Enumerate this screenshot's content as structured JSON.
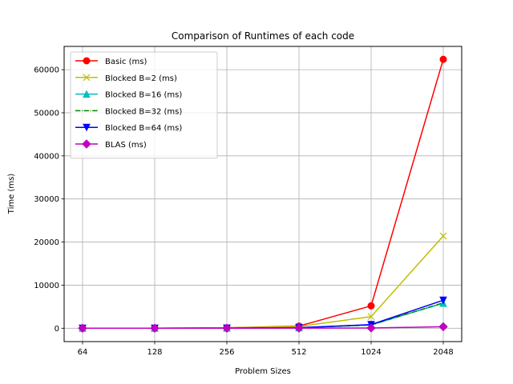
{
  "chart_data": {
    "type": "line",
    "title": "Comparison of Runtimes of each code",
    "xlabel": "Problem Sizes",
    "ylabel": "Time (ms)",
    "categories": [
      "64",
      "128",
      "256",
      "512",
      "1024",
      "2048"
    ],
    "ylim": [
      -3100,
      65400
    ],
    "yticks": [
      0,
      10000,
      20000,
      30000,
      40000,
      50000,
      60000
    ],
    "grid": true,
    "legend_position": "upper-left",
    "series": [
      {
        "name": "Basic (ms)",
        "color": "#ff0000",
        "marker": "circle",
        "dash": "solid",
        "values": [
          5,
          20,
          110,
          500,
          5200,
          62400
        ]
      },
      {
        "name": "Blocked B=2 (ms)",
        "color": "#bfbf00",
        "marker": "x",
        "dash": "solid",
        "values": [
          5,
          20,
          100,
          400,
          2700,
          21400
        ]
      },
      {
        "name": "Blocked B=16 (ms)",
        "color": "#00bfbf",
        "marker": "triangle-up",
        "dash": "solid",
        "values": [
          2,
          8,
          30,
          120,
          800,
          5800
        ]
      },
      {
        "name": "Blocked B=32 (ms)",
        "color": "#008000",
        "marker": "none",
        "dash": "dashdot",
        "values": [
          2,
          8,
          30,
          110,
          750,
          5900
        ]
      },
      {
        "name": "Blocked B=64 (ms)",
        "color": "#0000ff",
        "marker": "triangle-down",
        "dash": "solid",
        "values": [
          2,
          8,
          30,
          120,
          850,
          6500
        ]
      },
      {
        "name": "BLAS (ms)",
        "color": "#bf00bf",
        "marker": "diamond",
        "dash": "solid",
        "values": [
          2,
          5,
          10,
          30,
          60,
          350
        ]
      }
    ]
  }
}
